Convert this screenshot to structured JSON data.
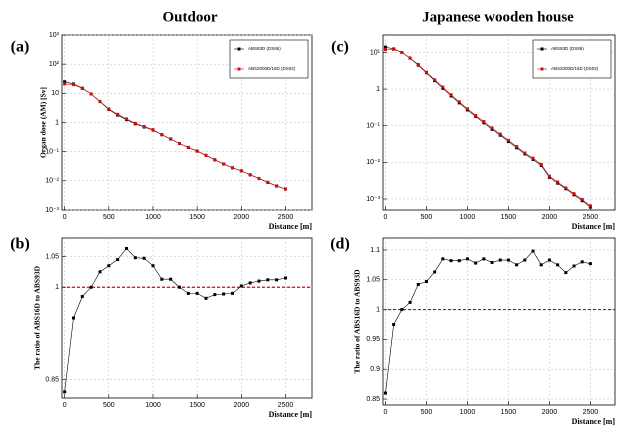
{
  "chart_data": [
    {
      "type": "line",
      "title": "Outdoor",
      "panel_label": "(a)",
      "x_label": "Distance [m]",
      "y_label": "Organ dose (AM) [Sv]",
      "log_y": true,
      "grid": true,
      "legend": "top-right",
      "x": [
        0,
        100,
        200,
        300,
        400,
        500,
        600,
        700,
        800,
        900,
        1000,
        1100,
        1200,
        1300,
        1400,
        1500,
        1600,
        1700,
        1800,
        1900,
        2000,
        2100,
        2200,
        2300,
        2400,
        2500
      ],
      "series": [
        {
          "name": "ABS93D (DS86)",
          "color": "#000000",
          "values": [
            25,
            21,
            15,
            9.5,
            5.2,
            2.8,
            1.8,
            1.25,
            0.9,
            0.7,
            0.55,
            0.38,
            0.27,
            0.19,
            0.14,
            0.105,
            0.075,
            0.053,
            0.038,
            0.028,
            0.022,
            0.016,
            0.012,
            0.0088,
            0.0066,
            0.0052
          ]
        },
        {
          "name": "ABS2000D/16D (DS02)",
          "color": "#d01010",
          "values": [
            21,
            20,
            14.8,
            9.5,
            5.3,
            2.9,
            1.9,
            1.33,
            0.94,
            0.73,
            0.57,
            0.385,
            0.274,
            0.19,
            0.139,
            0.104,
            0.074,
            0.052,
            0.0376,
            0.0278,
            0.022,
            0.0161,
            0.0121,
            0.0089,
            0.0067,
            0.0053
          ]
        }
      ],
      "xlim": [
        -30,
        2800
      ],
      "xticks": [
        0,
        500,
        1000,
        1500,
        2000,
        2500
      ],
      "ylim": [
        0.001,
        1000
      ],
      "yticks": [
        {
          "value": 0.001,
          "label": "10⁻³"
        },
        {
          "value": 0.01,
          "label": "10⁻²"
        },
        {
          "value": 0.1,
          "label": "10⁻¹"
        },
        1,
        10,
        {
          "value": 100,
          "label": "10²"
        },
        {
          "value": 1000,
          "label": "10³"
        }
      ]
    },
    {
      "type": "line",
      "panel_label": "(b)",
      "x_label": "Distance [m]",
      "y_label": "The ratio of ABS16D to ABS93D",
      "grid": true,
      "x": [
        0,
        100,
        200,
        300,
        400,
        500,
        600,
        700,
        800,
        900,
        1000,
        1100,
        1200,
        1300,
        1400,
        1500,
        1600,
        1700,
        1800,
        1900,
        2000,
        2100,
        2200,
        2300,
        2400,
        2500
      ],
      "series": [
        {
          "color": "#000000",
          "values": [
            0.83,
            0.95,
            0.985,
            1.0,
            1.025,
            1.035,
            1.045,
            1.063,
            1.048,
            1.047,
            1.035,
            1.013,
            1.013,
            1.0,
            0.99,
            0.99,
            0.982,
            0.988,
            0.989,
            0.99,
            1.002,
            1.007,
            1.01,
            1.012,
            1.012,
            1.015
          ]
        }
      ],
      "reference_line": {
        "value": 1,
        "color": "#e00000"
      },
      "xlim": [
        -30,
        2800
      ],
      "xticks": [
        0,
        500,
        1000,
        1500,
        2000,
        2500
      ],
      "ylim": [
        0.82,
        1.08
      ],
      "yticks": [
        0.85,
        1,
        1.05
      ]
    },
    {
      "type": "line",
      "title": "Japanese wooden house",
      "panel_label": "(c)",
      "x_label": "Distance [m]",
      "log_y": true,
      "grid": true,
      "legend": "top-right",
      "x": [
        0,
        100,
        200,
        300,
        400,
        500,
        600,
        700,
        800,
        900,
        1000,
        1100,
        1200,
        1300,
        1400,
        1500,
        1600,
        1700,
        1800,
        1900,
        2000,
        2100,
        2200,
        2300,
        2400,
        2500
      ],
      "series": [
        {
          "name": "ABS93D (DS86)",
          "color": "#000000",
          "values": [
            14,
            12.5,
            10,
            7,
            4.5,
            2.8,
            1.7,
            1.05,
            0.65,
            0.42,
            0.27,
            0.18,
            0.12,
            0.08,
            0.055,
            0.037,
            0.025,
            0.017,
            0.012,
            0.0082,
            0.0039,
            0.0027,
            0.0019,
            0.0013,
            0.0009,
            0.0006
          ]
        },
        {
          "name": "ABS2000D/16D (DS02)",
          "color": "#d01010",
          "values": [
            12,
            12.2,
            10,
            7.1,
            4.7,
            2.9,
            1.8,
            1.14,
            0.7,
            0.45,
            0.29,
            0.19,
            0.13,
            0.087,
            0.059,
            0.04,
            0.027,
            0.018,
            0.013,
            0.0088,
            0.0042,
            0.0029,
            0.002,
            0.0014,
            0.00097,
            0.00065
          ]
        }
      ],
      "xlim": [
        -30,
        2800
      ],
      "xticks": [
        0,
        500,
        1000,
        1500,
        2000,
        2500
      ],
      "ylim": [
        0.0005,
        30
      ],
      "yticks": [
        {
          "value": 0.001,
          "label": "10⁻³"
        },
        {
          "value": 0.01,
          "label": "10⁻²"
        },
        {
          "value": 0.1,
          "label": "10⁻¹"
        },
        1,
        {
          "value": 10,
          "label": "10¹"
        }
      ]
    },
    {
      "type": "line",
      "panel_label": "(d)",
      "x_label": "Distance [m]",
      "y_label": "The ratio of ABS16D to ABS93D",
      "grid": true,
      "x": [
        0,
        100,
        200,
        300,
        400,
        500,
        600,
        700,
        800,
        900,
        1000,
        1100,
        1200,
        1300,
        1400,
        1500,
        1600,
        1700,
        1800,
        1900,
        2000,
        2100,
        2200,
        2300,
        2400,
        2500
      ],
      "series": [
        {
          "color": "#000000",
          "values": [
            0.86,
            0.975,
            1.0,
            1.012,
            1.042,
            1.047,
            1.063,
            1.085,
            1.082,
            1.082,
            1.085,
            1.078,
            1.085,
            1.079,
            1.083,
            1.083,
            1.075,
            1.083,
            1.098,
            1.075,
            1.083,
            1.075,
            1.062,
            1.073,
            1.08,
            1.077
          ]
        }
      ],
      "reference_line": {
        "value": 1,
        "color": "#e00000"
      },
      "xlim": [
        -30,
        2800
      ],
      "xticks": [
        0,
        500,
        1000,
        1500,
        2000,
        2500
      ],
      "ylim": [
        0.84,
        1.12
      ],
      "yticks": [
        0.85,
        0.9,
        0.95,
        1,
        1.05,
        1.1
      ]
    }
  ]
}
